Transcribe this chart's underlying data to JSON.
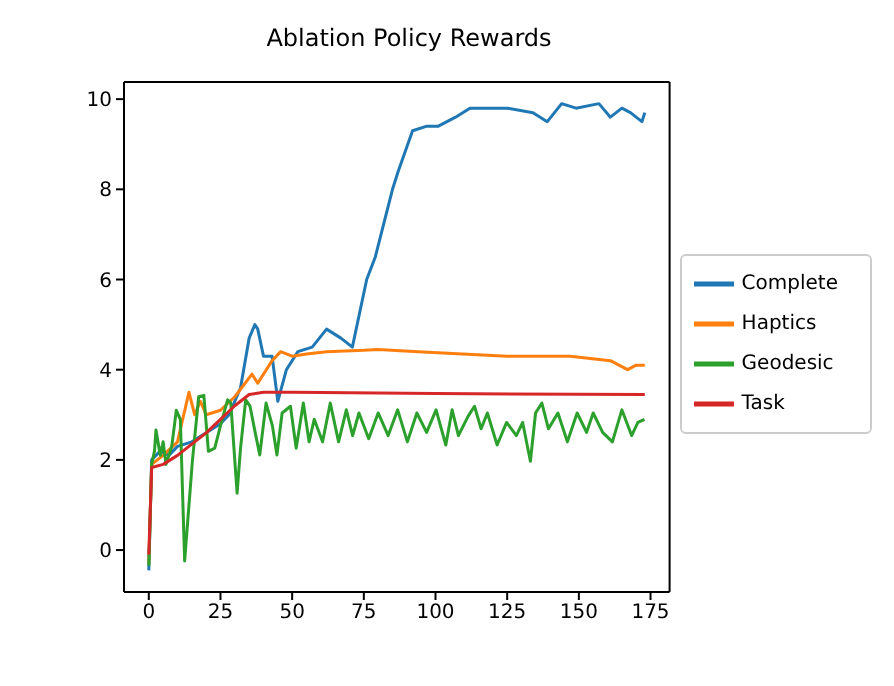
{
  "chart_data": {
    "type": "line",
    "title": "Ablation Policy Rewards",
    "xlim": [
      -8.65,
      181.65
    ],
    "ylim": [
      -0.93,
      10.38
    ],
    "xticks": [
      0,
      25,
      50,
      75,
      100,
      125,
      150,
      175
    ],
    "yticks": [
      0,
      2,
      4,
      6,
      8,
      10
    ],
    "grid": false,
    "legend": "right",
    "marker": "none",
    "line_style": "solid",
    "series": [
      {
        "name": "Complete",
        "color": "#1f77b4",
        "x": [
          0,
          1,
          4,
          7,
          10,
          15,
          20,
          25,
          28,
          32,
          35,
          37,
          38,
          40,
          43,
          45,
          48,
          52,
          57,
          62,
          67,
          71,
          76,
          79,
          81,
          85,
          87,
          92,
          97,
          101,
          107,
          112,
          118,
          125,
          134,
          139,
          144,
          149,
          157,
          161,
          165,
          168,
          172,
          173
        ],
        "values": [
          -0.45,
          2.0,
          2.2,
          2.1,
          2.3,
          2.4,
          2.6,
          2.8,
          3.0,
          3.6,
          4.7,
          5.0,
          4.9,
          4.3,
          4.3,
          3.3,
          4.0,
          4.4,
          4.5,
          4.9,
          4.7,
          4.5,
          6.0,
          6.5,
          7.0,
          8.0,
          8.4,
          9.3,
          9.4,
          9.4,
          9.6,
          9.8,
          9.8,
          9.8,
          9.7,
          9.5,
          9.9,
          9.8,
          9.9,
          9.6,
          9.8,
          9.7,
          9.5,
          9.7
        ]
      },
      {
        "name": "Haptics",
        "color": "#ff7f0e",
        "x": [
          0,
          1,
          5,
          10,
          14,
          16,
          18,
          20,
          25,
          30,
          36,
          38,
          43,
          46,
          50,
          55,
          62,
          75,
          80,
          94,
          125,
          147,
          161,
          167,
          170,
          173
        ],
        "values": [
          -0.3,
          1.9,
          2.1,
          2.4,
          3.5,
          3.0,
          3.3,
          3.0,
          3.1,
          3.4,
          3.9,
          3.7,
          4.2,
          4.4,
          4.3,
          4.35,
          4.4,
          4.43,
          4.45,
          4.4,
          4.3,
          4.3,
          4.2,
          4.0,
          4.1,
          4.1
        ]
      },
      {
        "name": "Geodesic",
        "color": "#2ca02c",
        "x": [
          0,
          1,
          2,
          2.5,
          4,
          5,
          6,
          8,
          9.6,
          11,
          12.5,
          15.2,
          17.4,
          19.2,
          20.8,
          23,
          25.3,
          27.5,
          28.6,
          30.8,
          32,
          33.8,
          35.3,
          37.1,
          38.7,
          40.9,
          43.1,
          44.7,
          46.5,
          49.4,
          51.4,
          53.9,
          55.9,
          57.7,
          60.6,
          63.3,
          66.2,
          68.9,
          71.1,
          73.3,
          76.7,
          80,
          83.5,
          86.8,
          90.2,
          93.5,
          96.9,
          100.2,
          103.6,
          105.8,
          108,
          111.4,
          113.6,
          115.9,
          118.1,
          121.5,
          124.8,
          128.2,
          130.4,
          133.1,
          134.9,
          137.1,
          139.4,
          142.7,
          146,
          149.4,
          152.7,
          155,
          158.3,
          161.7,
          165,
          168.4,
          170.6,
          172.9
        ],
        "values": [
          -0.35,
          1.9,
          2.2,
          2.66,
          2.1,
          2.4,
          1.9,
          2.3,
          3.1,
          2.9,
          -0.24,
          1.97,
          3.4,
          3.43,
          2.19,
          2.26,
          2.83,
          3.33,
          3.26,
          1.26,
          2.26,
          3.33,
          3.19,
          2.61,
          2.11,
          3.26,
          2.76,
          2.11,
          3.04,
          3.19,
          2.26,
          3.26,
          2.4,
          2.9,
          2.4,
          3.26,
          2.4,
          3.11,
          2.54,
          3.04,
          2.47,
          3.04,
          2.54,
          3.11,
          2.4,
          3.04,
          2.61,
          3.11,
          2.33,
          3.11,
          2.54,
          2.97,
          3.19,
          2.69,
          3.04,
          2.33,
          2.83,
          2.54,
          2.83,
          1.97,
          3.04,
          3.26,
          2.69,
          3.04,
          2.4,
          3.04,
          2.61,
          3.04,
          2.61,
          2.4,
          3.11,
          2.54,
          2.83,
          2.9
        ]
      },
      {
        "name": "Task",
        "color": "#d62728",
        "x": [
          0,
          1,
          5,
          10,
          15,
          20,
          25,
          30,
          35,
          40,
          50,
          100,
          173
        ],
        "values": [
          -0.1,
          1.83,
          1.9,
          2.1,
          2.35,
          2.6,
          2.9,
          3.2,
          3.45,
          3.5,
          3.5,
          3.47,
          3.45
        ]
      }
    ]
  }
}
